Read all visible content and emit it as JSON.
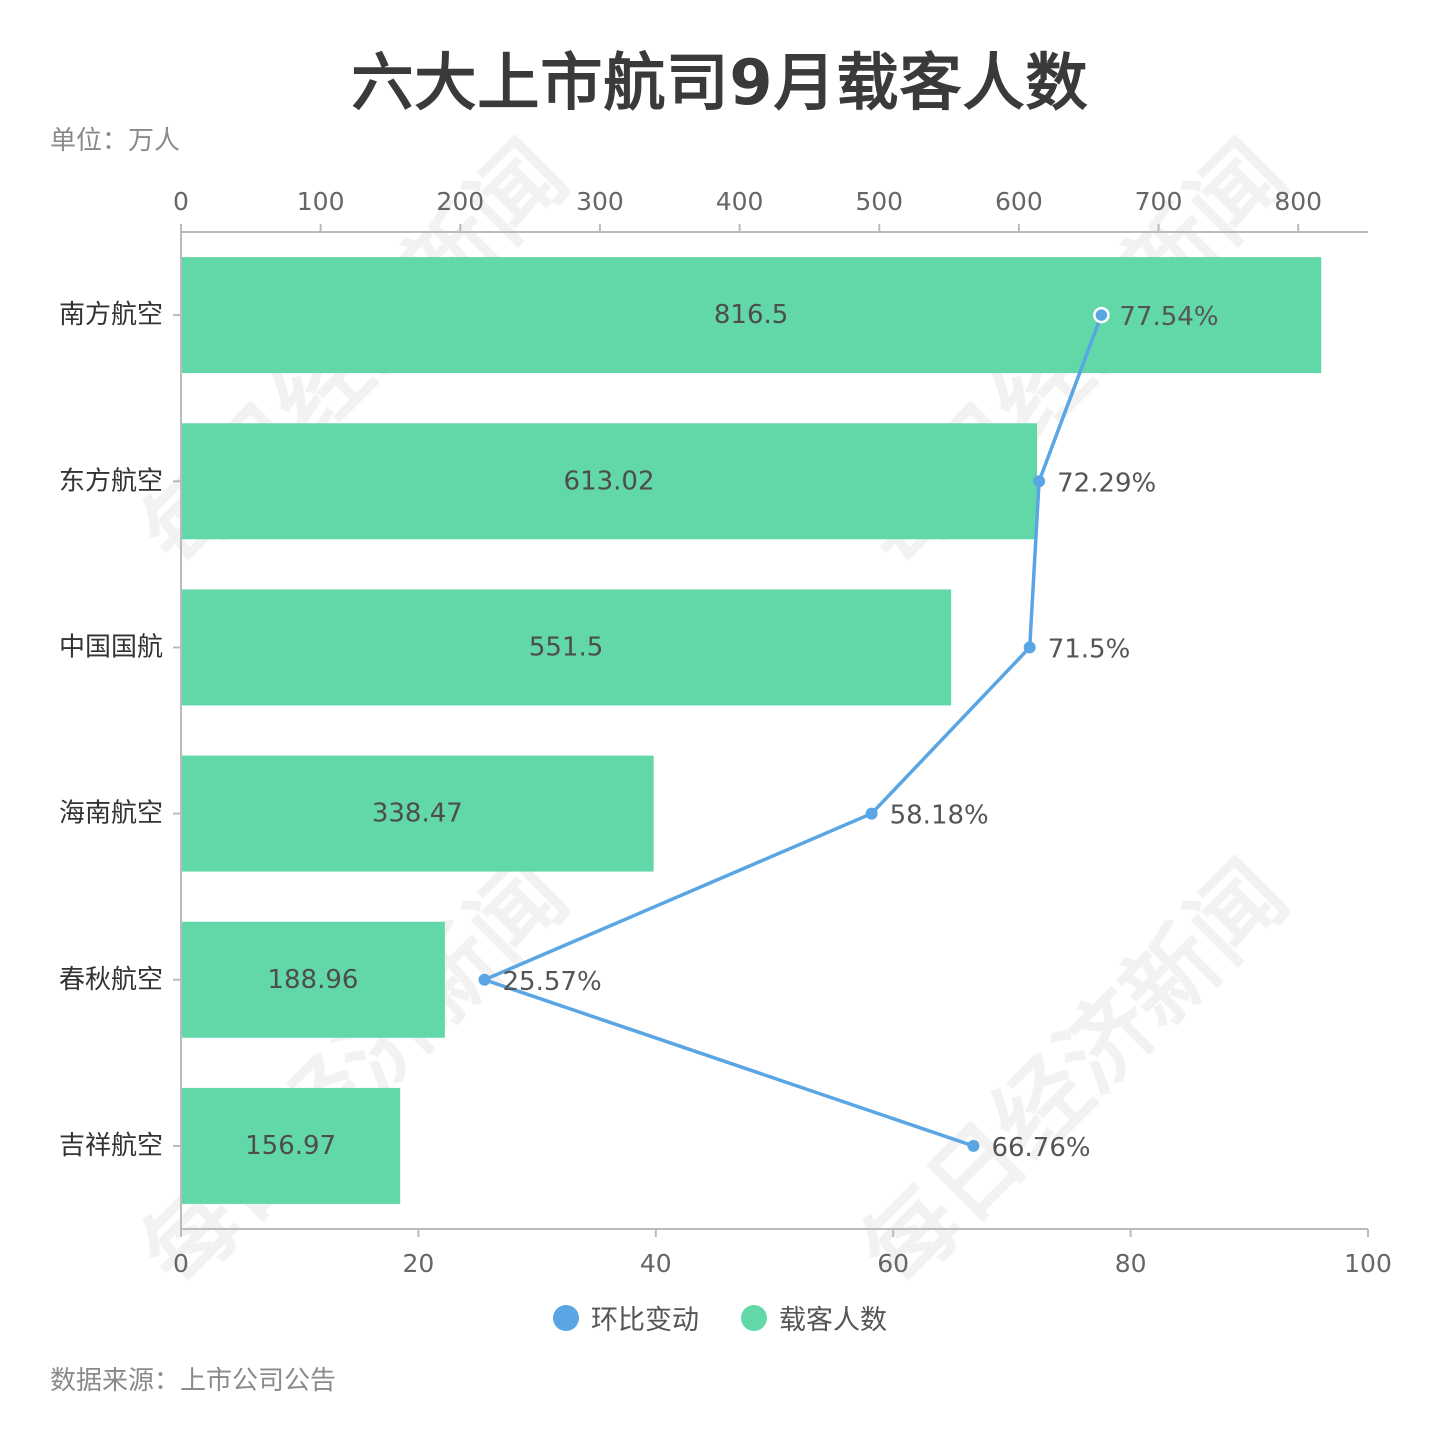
{
  "title": "六大上市航司9月载客人数",
  "unit": "单位：万人",
  "source": "数据来源：上市公司公告",
  "watermark": "每日经济新闻",
  "colors": {
    "bar": "#62d8a9",
    "line": "#5aa5e4",
    "axis": "#bbbbbb"
  },
  "chart_data": {
    "type": "bar",
    "orientation": "horizontal",
    "categories": [
      "南方航空",
      "东方航空",
      "中国国航",
      "海南航空",
      "春秋航空",
      "吉祥航空"
    ],
    "top_axis": {
      "range": [
        0,
        850
      ],
      "ticks": [
        "0",
        "100",
        "200",
        "300",
        "400",
        "500",
        "600",
        "700",
        "800"
      ]
    },
    "bottom_axis": {
      "range": [
        0,
        100
      ],
      "ticks": [
        "0",
        "20",
        "40",
        "60",
        "80",
        "100"
      ]
    },
    "series": [
      {
        "name": "载客人数",
        "type": "bar",
        "axis": "top",
        "values": [
          816.5,
          613.02,
          551.5,
          338.47,
          188.96,
          156.97
        ],
        "labels": [
          "816.5",
          "613.02",
          "551.5",
          "338.47",
          "188.96",
          "156.97"
        ]
      },
      {
        "name": "环比变动",
        "type": "line",
        "axis": "bottom",
        "values": [
          77.54,
          72.29,
          71.5,
          58.18,
          25.57,
          66.76
        ],
        "labels": [
          "77.54%",
          "72.29%",
          "71.5%",
          "58.18%",
          "25.57%",
          "66.76%"
        ]
      }
    ],
    "legend": {
      "position": "bottom-center",
      "items": [
        {
          "label": "环比变动",
          "color": "#5aa5e4"
        },
        {
          "label": "载客人数",
          "color": "#62d8a9"
        }
      ]
    }
  }
}
